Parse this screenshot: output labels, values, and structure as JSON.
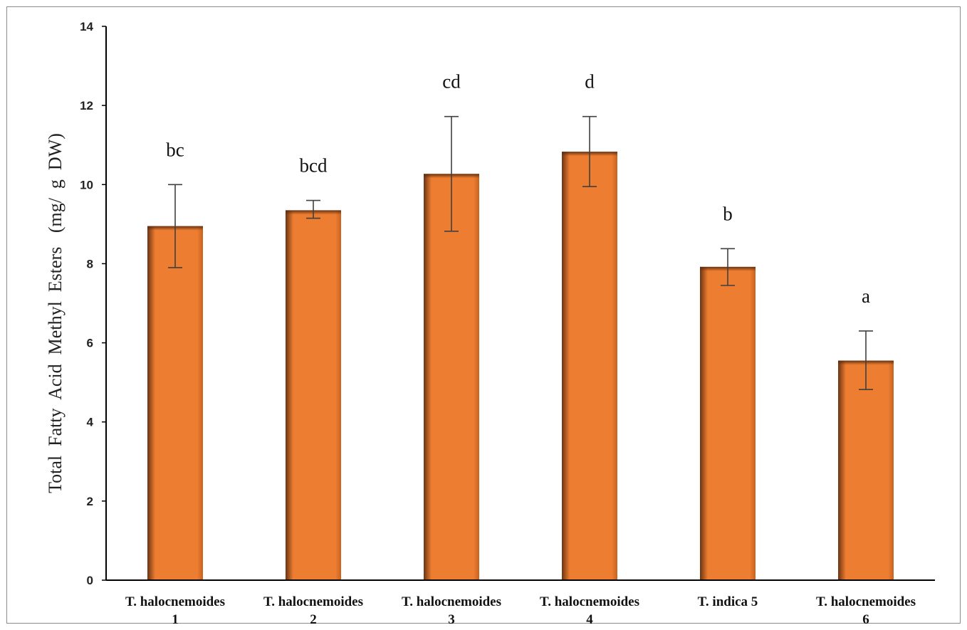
{
  "chart_data": {
    "type": "bar",
    "title": "",
    "xlabel": "",
    "ylabel": "Total  Fatty  Acid  Methyl  Esters   (mg/  g  DW)",
    "ylim": [
      0,
      14
    ],
    "yticks": [
      0,
      2,
      4,
      6,
      8,
      10,
      12,
      14
    ],
    "grid": false,
    "legend": "none",
    "bar_color": "#ED7D31",
    "categories": [
      [
        "T. halocnemoides",
        "1"
      ],
      [
        "T. halocnemoides",
        "2"
      ],
      [
        "T. halocnemoides",
        "3"
      ],
      [
        "T. halocnemoides",
        "4"
      ],
      [
        "T. indica 5"
      ],
      [
        "T. halocnemoides",
        "6"
      ]
    ],
    "values": [
      8.95,
      9.35,
      10.27,
      10.83,
      7.92,
      5.55
    ],
    "error_bars": [
      [
        7.9,
        10.0
      ],
      [
        9.15,
        9.6
      ],
      [
        8.82,
        11.72
      ],
      [
        9.95,
        11.72
      ],
      [
        7.45,
        8.38
      ],
      [
        4.82,
        6.3
      ]
    ],
    "significance_labels": [
      "bc",
      "bcd",
      "cd",
      "d",
      "b",
      "a"
    ]
  }
}
